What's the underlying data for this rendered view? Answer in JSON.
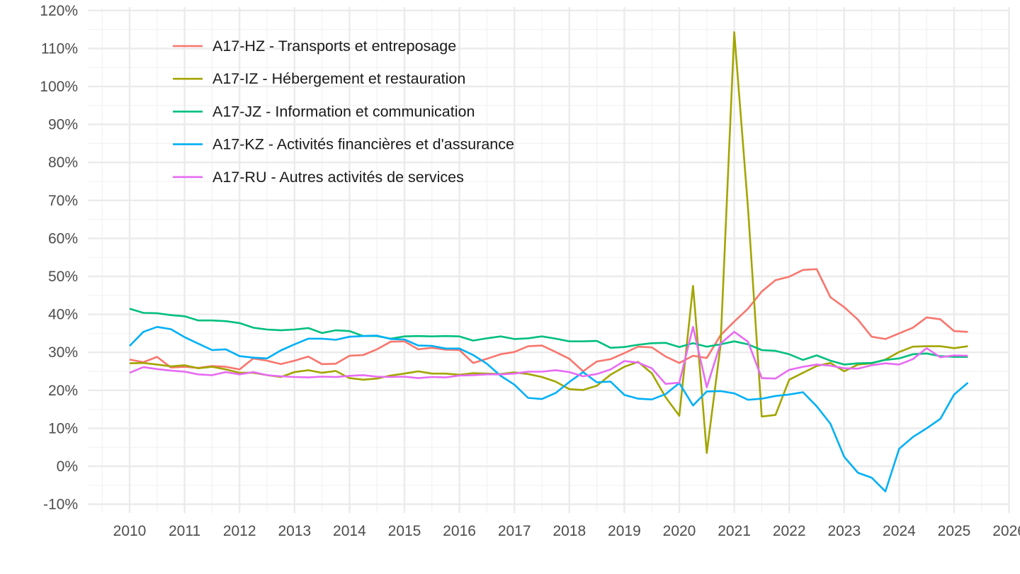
{
  "chart_data": {
    "type": "line",
    "title": "",
    "xlabel": "",
    "ylabel": "",
    "xlim": [
      2009.5,
      2026.0
    ],
    "ylim": [
      -0.11,
      1.2
    ],
    "y_ticks": [
      -0.1,
      0.0,
      0.1,
      0.2,
      0.3,
      0.4,
      0.5,
      0.6,
      0.7,
      0.8,
      0.9,
      1.0,
      1.1,
      1.2
    ],
    "y_tick_labels": [
      "-10%",
      "0%",
      "10%",
      "20%",
      "30%",
      "40%",
      "50%",
      "60%",
      "70%",
      "80%",
      "90%",
      "100%",
      "110%",
      "120%"
    ],
    "x_ticks": [
      2010,
      2011,
      2012,
      2013,
      2014,
      2015,
      2016,
      2017,
      2018,
      2019,
      2020,
      2021,
      2022,
      2023,
      2024,
      2025,
      2026
    ],
    "x_tick_labels": [
      "2010",
      "2011",
      "2012",
      "2013",
      "2014",
      "2015",
      "2016",
      "2017",
      "2018",
      "2019",
      "2020",
      "2021",
      "2022",
      "2023",
      "2024",
      "2025",
      "2026"
    ],
    "grid": true,
    "legend_position": "top-left",
    "x": [
      2010.0,
      2010.25,
      2010.5,
      2010.75,
      2011.0,
      2011.25,
      2011.5,
      2011.75,
      2012.0,
      2012.25,
      2012.5,
      2012.75,
      2013.0,
      2013.25,
      2013.5,
      2013.75,
      2014.0,
      2014.25,
      2014.5,
      2014.75,
      2015.0,
      2015.25,
      2015.5,
      2015.75,
      2016.0,
      2016.25,
      2016.5,
      2016.75,
      2017.0,
      2017.25,
      2017.5,
      2017.75,
      2018.0,
      2018.25,
      2018.5,
      2018.75,
      2019.0,
      2019.25,
      2019.5,
      2019.75,
      2020.0,
      2020.25,
      2020.5,
      2020.75,
      2021.0,
      2021.25,
      2021.5,
      2021.75,
      2022.0,
      2022.25,
      2022.5,
      2022.75,
      2023.0,
      2023.25,
      2023.5,
      2023.75,
      2024.0,
      2024.25,
      2024.5,
      2024.75,
      2025.0,
      2025.25
    ],
    "series": [
      {
        "name": "A17-HZ - Transports et entreposage",
        "color": "#F8766D",
        "values": [
          0.281,
          0.274,
          0.288,
          0.26,
          0.262,
          0.259,
          0.264,
          0.262,
          0.255,
          0.284,
          0.278,
          0.269,
          0.278,
          0.289,
          0.269,
          0.27,
          0.291,
          0.293,
          0.308,
          0.328,
          0.329,
          0.308,
          0.312,
          0.307,
          0.306,
          0.272,
          0.283,
          0.295,
          0.301,
          0.316,
          0.318,
          0.301,
          0.283,
          0.25,
          0.276,
          0.282,
          0.298,
          0.315,
          0.313,
          0.289,
          0.272,
          0.291,
          0.285,
          0.345,
          0.381,
          0.415,
          0.46,
          0.49,
          0.499,
          0.517,
          0.519,
          0.445,
          0.419,
          0.386,
          0.341,
          0.335,
          0.35,
          0.365,
          0.392,
          0.387,
          0.356,
          0.354
        ]
      },
      {
        "name": "A17-IZ - Hébergement et restauration",
        "color": "#A3A500",
        "values": [
          0.271,
          0.272,
          0.268,
          0.263,
          0.266,
          0.258,
          0.262,
          0.255,
          0.246,
          0.246,
          0.24,
          0.235,
          0.248,
          0.253,
          0.246,
          0.251,
          0.232,
          0.228,
          0.231,
          0.239,
          0.244,
          0.25,
          0.244,
          0.244,
          0.241,
          0.245,
          0.244,
          0.243,
          0.247,
          0.243,
          0.235,
          0.223,
          0.203,
          0.201,
          0.212,
          0.241,
          0.262,
          0.275,
          0.245,
          0.182,
          0.133,
          0.475,
          0.035,
          0.318,
          1.143,
          0.68,
          0.131,
          0.135,
          0.228,
          0.246,
          0.264,
          0.272,
          0.25,
          0.268,
          0.271,
          0.281,
          0.301,
          0.315,
          0.316,
          0.316,
          0.311,
          0.316
        ]
      },
      {
        "name": "A17-JZ - Information et communication",
        "color": "#00BF7D",
        "values": [
          0.415,
          0.404,
          0.403,
          0.398,
          0.395,
          0.384,
          0.384,
          0.382,
          0.377,
          0.365,
          0.36,
          0.358,
          0.36,
          0.364,
          0.351,
          0.358,
          0.356,
          0.343,
          0.343,
          0.336,
          0.342,
          0.343,
          0.342,
          0.343,
          0.342,
          0.331,
          0.337,
          0.342,
          0.335,
          0.337,
          0.342,
          0.336,
          0.329,
          0.329,
          0.33,
          0.312,
          0.314,
          0.32,
          0.324,
          0.325,
          0.314,
          0.324,
          0.315,
          0.321,
          0.329,
          0.321,
          0.306,
          0.304,
          0.295,
          0.28,
          0.292,
          0.278,
          0.268,
          0.271,
          0.272,
          0.28,
          0.284,
          0.295,
          0.297,
          0.29,
          0.288,
          0.288
        ]
      },
      {
        "name": "A17-KZ - Activités financières et d'assurance",
        "color": "#00B0F6",
        "values": [
          0.317,
          0.354,
          0.367,
          0.361,
          0.34,
          0.323,
          0.306,
          0.308,
          0.29,
          0.286,
          0.284,
          0.305,
          0.321,
          0.336,
          0.336,
          0.333,
          0.341,
          0.343,
          0.344,
          0.335,
          0.334,
          0.318,
          0.317,
          0.31,
          0.31,
          0.293,
          0.27,
          0.238,
          0.215,
          0.18,
          0.177,
          0.193,
          0.222,
          0.248,
          0.221,
          0.223,
          0.188,
          0.178,
          0.176,
          0.19,
          0.219,
          0.16,
          0.197,
          0.198,
          0.192,
          0.175,
          0.178,
          0.185,
          0.189,
          0.195,
          0.158,
          0.112,
          0.025,
          -0.017,
          -0.03,
          -0.066,
          0.046,
          0.077,
          0.1,
          0.125,
          0.189,
          0.22
        ]
      },
      {
        "name": "A17-RU - Autres activités de services",
        "color": "#E76BF3",
        "values": [
          0.246,
          0.261,
          0.256,
          0.252,
          0.249,
          0.242,
          0.24,
          0.248,
          0.242,
          0.248,
          0.24,
          0.237,
          0.235,
          0.234,
          0.236,
          0.235,
          0.238,
          0.24,
          0.236,
          0.235,
          0.236,
          0.232,
          0.235,
          0.234,
          0.239,
          0.24,
          0.242,
          0.242,
          0.244,
          0.249,
          0.249,
          0.253,
          0.248,
          0.237,
          0.243,
          0.255,
          0.277,
          0.273,
          0.258,
          0.217,
          0.22,
          0.367,
          0.208,
          0.323,
          0.354,
          0.328,
          0.232,
          0.231,
          0.254,
          0.262,
          0.268,
          0.265,
          0.258,
          0.257,
          0.266,
          0.271,
          0.268,
          0.282,
          0.311,
          0.287,
          0.292,
          0.291
        ]
      }
    ]
  }
}
